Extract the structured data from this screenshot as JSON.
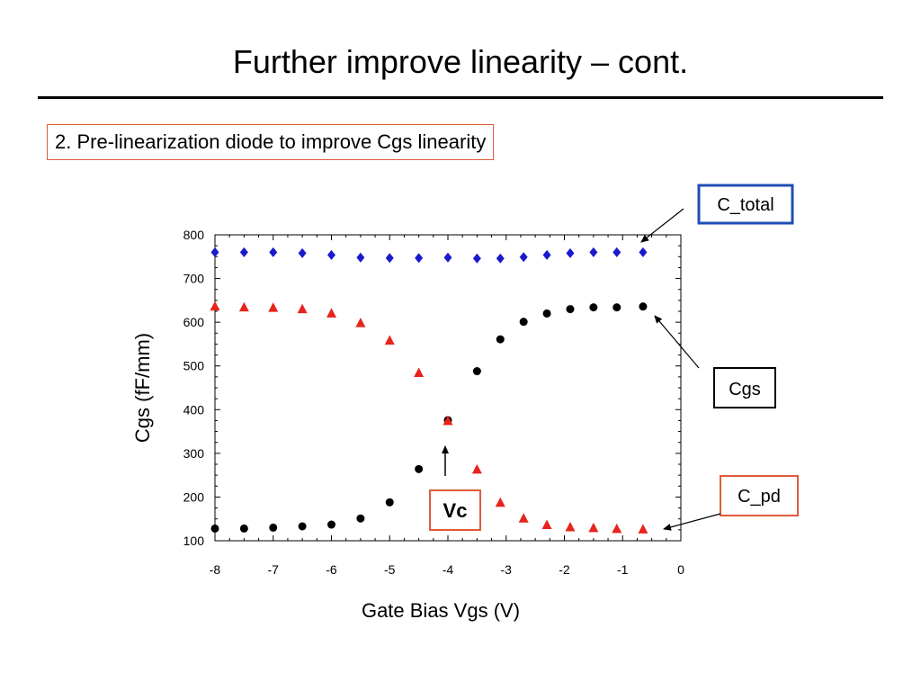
{
  "slide": {
    "title": "Further improve linearity – cont.",
    "subtitle": "2. Pre-linearization diode to improve Cgs linearity"
  },
  "callouts": {
    "c_total": "C_total",
    "cgs": "Cgs",
    "c_pd": "C_pd",
    "vc": "Vc"
  },
  "colors": {
    "c_total": "#1a1acc",
    "cgs": "#000000",
    "c_pd": "#e8231c",
    "c_total_box": "#1f4fb5",
    "c_pd_box": "#e05a3a",
    "vc_box": "#e05a3a"
  },
  "chart_data": {
    "type": "scatter",
    "title": "",
    "xlabel": "Gate Bias Vgs (V)",
    "ylabel": "Cgs (fF/mm)",
    "xlim": [
      -8,
      0
    ],
    "ylim": [
      100,
      800
    ],
    "xticks": [
      -8,
      -7,
      -6,
      -5,
      -4,
      -3,
      -2,
      -1,
      0
    ],
    "yticks": [
      100,
      200,
      300,
      400,
      500,
      600,
      700,
      800
    ],
    "grid": false,
    "legend": "callout boxes",
    "series": [
      {
        "key": "c_total",
        "marker": "diamond",
        "x": [
          -8,
          -7.5,
          -7,
          -6.5,
          -6,
          -5.5,
          -5,
          -4.5,
          -4,
          -3.5,
          -3.1,
          -2.7,
          -2.3,
          -1.9,
          -1.5,
          -1.1,
          -0.65
        ],
        "y": [
          760,
          760,
          760,
          758,
          754,
          748,
          747,
          747,
          748,
          746,
          746,
          749,
          754,
          758,
          760,
          760,
          760
        ]
      },
      {
        "key": "cgs",
        "marker": "circle",
        "x": [
          -8,
          -7.5,
          -7,
          -6.5,
          -6,
          -5.5,
          -5,
          -4.5,
          -4,
          -3.5,
          -3.1,
          -2.7,
          -2.3,
          -1.9,
          -1.5,
          -1.1,
          -0.65
        ],
        "y": [
          128,
          128,
          130,
          133,
          137,
          151,
          188,
          264,
          376,
          488,
          561,
          601,
          620,
          630,
          634,
          634,
          636
        ]
      },
      {
        "key": "c_pd",
        "marker": "triangle",
        "x": [
          -8,
          -7.5,
          -7,
          -6.5,
          -6,
          -5.5,
          -5,
          -4.5,
          -4,
          -3.5,
          -3.1,
          -2.7,
          -2.3,
          -1.9,
          -1.5,
          -1.1,
          -0.65
        ],
        "y": [
          636,
          634,
          633,
          630,
          620,
          598,
          558,
          484,
          374,
          263,
          187,
          151,
          136,
          131,
          129,
          127,
          126
        ]
      }
    ]
  }
}
